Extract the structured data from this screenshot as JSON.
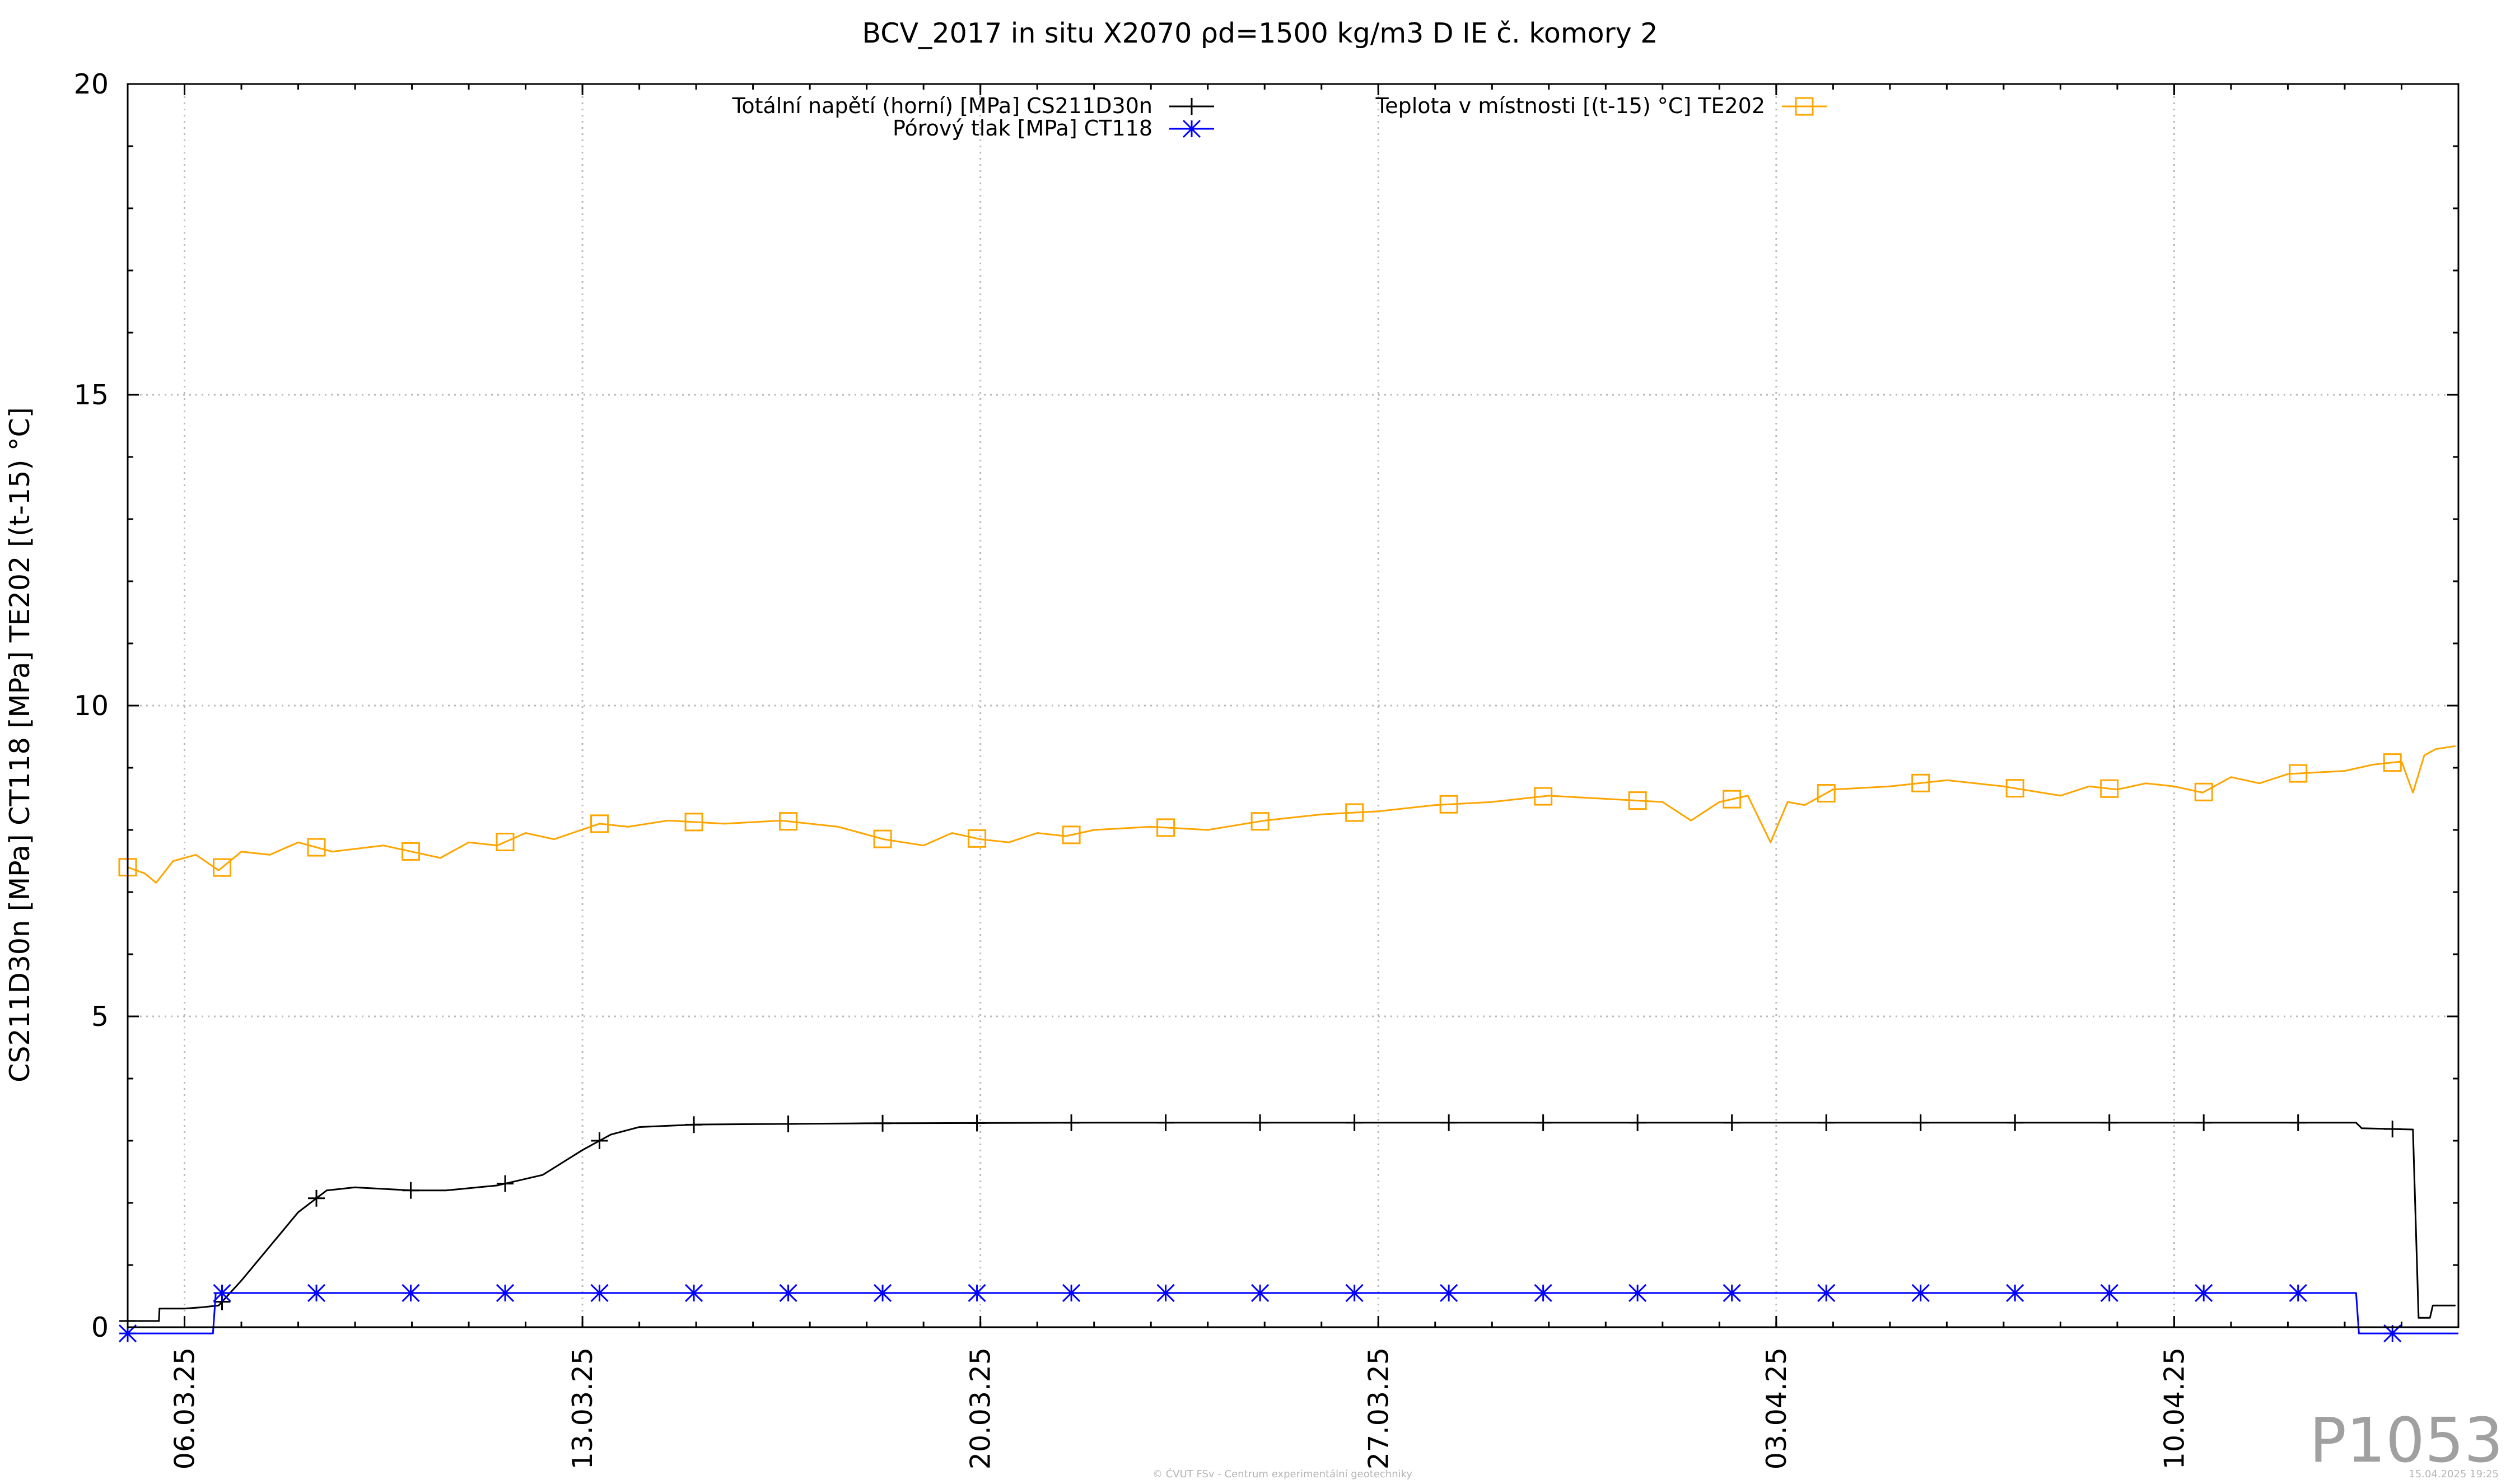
{
  "chart_data": {
    "type": "line",
    "title": "BCV_2017 in situ X2070 ρd=1500 kg/m3 D IE č. komory 2",
    "ylabel": "CS211D30n [MPa] CT118 [MPa] TE202 [(t-15) °C]",
    "xlabel": "",
    "ylim": [
      0,
      20
    ],
    "yticks": [
      "0",
      "5",
      "10",
      "15",
      "20"
    ],
    "xlim": [
      "2025-03-05",
      "2025-04-15"
    ],
    "xticks": [
      {
        "date": "2025-03-06",
        "label": "06.03.25"
      },
      {
        "date": "2025-03-13",
        "label": "13.03.25"
      },
      {
        "date": "2025-03-20",
        "label": "20.03.25"
      },
      {
        "date": "2025-03-27",
        "label": "27.03.25"
      },
      {
        "date": "2025-04-03",
        "label": "03.04.25"
      },
      {
        "date": "2025-04-10",
        "label": "10.04.25"
      }
    ],
    "grid": true,
    "legend_position": "top",
    "series": [
      {
        "name": "Totální napětí (horní) [MPa] CS211D30n",
        "color": "#000000",
        "marker": "plus",
        "points": [
          [
            "2025-03-05",
            0.1
          ],
          [
            "2025-03-05.55",
            0.1
          ],
          [
            "2025-03-05.56",
            0.3
          ],
          [
            "2025-03-06",
            0.3
          ],
          [
            "2025-03-06.3",
            0.32
          ],
          [
            "2025-03-06.6",
            0.35
          ],
          [
            "2025-03-07.0",
            0.75
          ],
          [
            "2025-03-07.5",
            1.3
          ],
          [
            "2025-03-08.0",
            1.85
          ],
          [
            "2025-03-08.5",
            2.2
          ],
          [
            "2025-03-09.0",
            2.25
          ],
          [
            "2025-03-10.0",
            2.2
          ],
          [
            "2025-03-10.6",
            2.2
          ],
          [
            "2025-03-11.5",
            2.28
          ],
          [
            "2025-03-12.3",
            2.45
          ],
          [
            "2025-03-13.0",
            2.85
          ],
          [
            "2025-03-13.5",
            3.1
          ],
          [
            "2025-03-14.0",
            3.22
          ],
          [
            "2025-03-15",
            3.26
          ],
          [
            "2025-03-18",
            3.28
          ],
          [
            "2025-03-22",
            3.29
          ],
          [
            "2025-03-27",
            3.29
          ],
          [
            "2025-04-01",
            3.29
          ],
          [
            "2025-04-06",
            3.29
          ],
          [
            "2025-04-10",
            3.29
          ],
          [
            "2025-04-13.2",
            3.29
          ],
          [
            "2025-04-13.3",
            3.2
          ],
          [
            "2025-04-14.2",
            3.18
          ],
          [
            "2025-04-14.3",
            0.15
          ],
          [
            "2025-04-14.5",
            0.15
          ],
          [
            "2025-04-14.55",
            0.35
          ],
          [
            "2025-04-14.95",
            0.35
          ]
        ]
      },
      {
        "name": "Pórový tlak [MPa] CT118",
        "color": "#0000ff",
        "marker": "star",
        "points": [
          [
            "2025-03-05",
            -0.1
          ],
          [
            "2025-03-06.5",
            -0.1
          ],
          [
            "2025-03-06.55",
            0.55
          ],
          [
            "2025-04-13.2",
            0.55
          ],
          [
            "2025-04-13.25",
            -0.1
          ],
          [
            "2025-04-15",
            -0.1
          ]
        ]
      },
      {
        "name": "Teplota v místnosti [(t-15) °C] TE202",
        "color": "#ffa500",
        "marker": "square",
        "points": [
          [
            "2025-03-05",
            7.4
          ],
          [
            "2025-03-05.3",
            7.3
          ],
          [
            "2025-03-05.5",
            7.15
          ],
          [
            "2025-03-05.8",
            7.5
          ],
          [
            "2025-03-06.2",
            7.6
          ],
          [
            "2025-03-06.6",
            7.35
          ],
          [
            "2025-03-07.0",
            7.65
          ],
          [
            "2025-03-07.5",
            7.6
          ],
          [
            "2025-03-08.0",
            7.8
          ],
          [
            "2025-03-08.6",
            7.65
          ],
          [
            "2025-03-09.5",
            7.75
          ],
          [
            "2025-03-10.5",
            7.55
          ],
          [
            "2025-03-11.0",
            7.8
          ],
          [
            "2025-03-11.5",
            7.75
          ],
          [
            "2025-03-12.0",
            7.95
          ],
          [
            "2025-03-12.5",
            7.85
          ],
          [
            "2025-03-13.3",
            8.1
          ],
          [
            "2025-03-13.8",
            8.05
          ],
          [
            "2025-03-14.5",
            8.15
          ],
          [
            "2025-03-15.5",
            8.1
          ],
          [
            "2025-03-16.5",
            8.15
          ],
          [
            "2025-03-17.5",
            8.05
          ],
          [
            "2025-03-18.3",
            7.85
          ],
          [
            "2025-03-19.0",
            7.75
          ],
          [
            "2025-03-19.5",
            7.95
          ],
          [
            "2025-03-20.0",
            7.85
          ],
          [
            "2025-03-20.5",
            7.8
          ],
          [
            "2025-03-21.0",
            7.95
          ],
          [
            "2025-03-21.5",
            7.9
          ],
          [
            "2025-03-22.0",
            8.0
          ],
          [
            "2025-03-23.0",
            8.05
          ],
          [
            "2025-03-24.0",
            8.0
          ],
          [
            "2025-03-25.0",
            8.15
          ],
          [
            "2025-03-26.0",
            8.25
          ],
          [
            "2025-03-27.0",
            8.3
          ],
          [
            "2025-03-28.0",
            8.4
          ],
          [
            "2025-03-29.0",
            8.45
          ],
          [
            "2025-03-30.0",
            8.55
          ],
          [
            "2025-03-31.0",
            8.5
          ],
          [
            "2025-04-01.0",
            8.45
          ],
          [
            "2025-04-01.5",
            8.15
          ],
          [
            "2025-04-02.0",
            8.45
          ],
          [
            "2025-04-02.5",
            8.55
          ],
          [
            "2025-04-02.9",
            7.8
          ],
          [
            "2025-04-03.2",
            8.45
          ],
          [
            "2025-04-03.5",
            8.4
          ],
          [
            "2025-04-04.0",
            8.65
          ],
          [
            "2025-04-05.0",
            8.7
          ],
          [
            "2025-04-06.0",
            8.8
          ],
          [
            "2025-04-07.0",
            8.7
          ],
          [
            "2025-04-08.0",
            8.55
          ],
          [
            "2025-04-08.5",
            8.7
          ],
          [
            "2025-04-09.0",
            8.65
          ],
          [
            "2025-04-09.5",
            8.75
          ],
          [
            "2025-04-10.0",
            8.7
          ],
          [
            "2025-04-10.5",
            8.6
          ],
          [
            "2025-04-11.0",
            8.85
          ],
          [
            "2025-04-11.5",
            8.75
          ],
          [
            "2025-04-12.0",
            8.9
          ],
          [
            "2025-04-13.0",
            8.95
          ],
          [
            "2025-04-13.5",
            9.05
          ],
          [
            "2025-04-14.0",
            9.1
          ],
          [
            "2025-04-14.2",
            8.6
          ],
          [
            "2025-04-14.4",
            9.2
          ],
          [
            "2025-04-14.6",
            9.3
          ],
          [
            "2025-04-14.95",
            9.35
          ]
        ]
      }
    ]
  },
  "overlay": {
    "watermark": "P1053",
    "footer_center": "© ČVUT FSv - Centrum experimentální geotechniky",
    "footer_right": "15.04.2025 19:25"
  }
}
